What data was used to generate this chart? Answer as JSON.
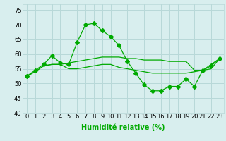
{
  "background_color": "#d8eeee",
  "grid_color": "#b8d8d8",
  "line_color": "#00aa00",
  "xlabel": "Humidité relative (%)",
  "xlabel_fontsize": 7,
  "ylim": [
    40,
    77
  ],
  "xlim": [
    -0.5,
    23.5
  ],
  "yticks": [
    40,
    45,
    50,
    55,
    60,
    65,
    70,
    75
  ],
  "xticks": [
    0,
    1,
    2,
    3,
    4,
    5,
    6,
    7,
    8,
    9,
    10,
    11,
    12,
    13,
    14,
    15,
    16,
    17,
    18,
    19,
    20,
    21,
    22,
    23
  ],
  "line1_x": [
    0,
    1,
    2,
    3,
    4,
    5,
    6,
    7,
    8,
    9,
    10,
    11,
    12,
    13,
    14,
    15,
    16,
    17,
    18,
    19,
    20,
    21,
    22,
    23
  ],
  "line1_y": [
    52.5,
    54.5,
    56.5,
    59.5,
    57.0,
    56.5,
    64.0,
    70.0,
    70.5,
    68.0,
    66.0,
    63.0,
    57.5,
    53.5,
    49.5,
    47.5,
    47.5,
    49.0,
    49.0,
    51.5,
    49.0,
    54.5,
    56.0,
    58.5
  ],
  "line2_x": [
    0,
    1,
    2,
    3,
    4,
    5,
    6,
    7,
    8,
    9,
    10,
    11,
    12,
    13,
    14,
    15,
    16,
    17,
    18,
    19,
    20,
    21,
    22,
    23
  ],
  "line2_y": [
    52.5,
    54.0,
    56.0,
    56.5,
    56.5,
    57.0,
    57.5,
    58.0,
    58.5,
    59.0,
    59.0,
    59.0,
    58.5,
    58.5,
    58.0,
    58.0,
    58.0,
    57.5,
    57.5,
    57.5,
    54.5,
    54.5,
    56.5,
    58.5
  ],
  "line3_x": [
    0,
    1,
    2,
    3,
    4,
    5,
    6,
    7,
    8,
    9,
    10,
    11,
    12,
    13,
    14,
    15,
    16,
    17,
    18,
    19,
    20,
    21,
    22,
    23
  ],
  "line3_y": [
    52.5,
    54.0,
    56.0,
    56.5,
    56.5,
    55.0,
    55.0,
    55.5,
    56.0,
    56.5,
    56.5,
    55.5,
    55.0,
    54.5,
    54.0,
    53.5,
    53.5,
    53.5,
    53.5,
    53.5,
    54.0,
    54.5,
    55.0,
    58.5
  ],
  "tick_fontsize": 6,
  "marker_size": 3
}
